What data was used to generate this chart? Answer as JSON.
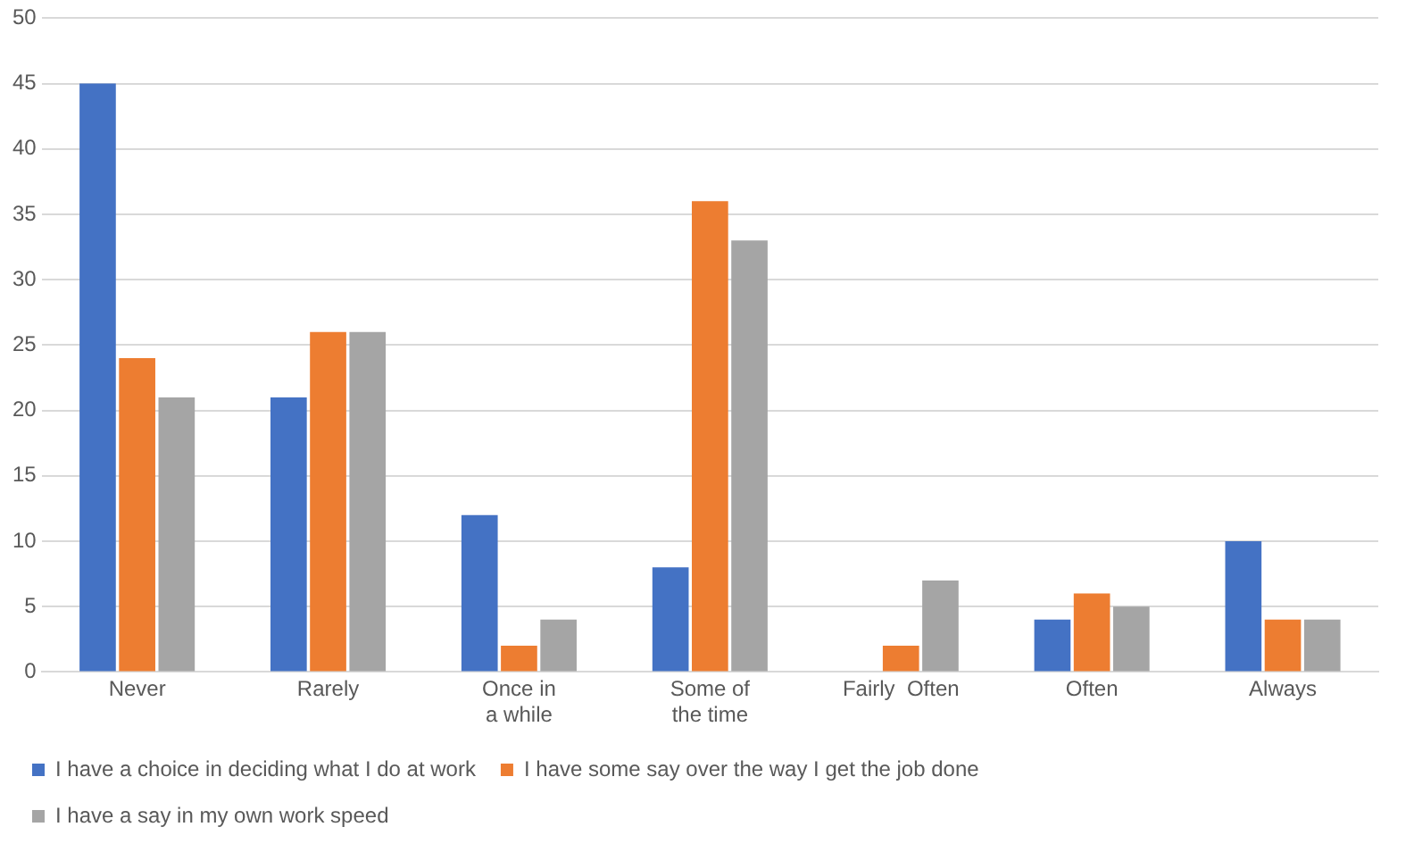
{
  "chart_data": {
    "type": "bar",
    "categories": [
      "Never",
      "Rarely",
      "Once in a while",
      "Some of the time",
      "Fairly  Often",
      "Often",
      "Always"
    ],
    "series": [
      {
        "name": "I have a choice in deciding what I do at work",
        "color": "#4472c4",
        "values": [
          45,
          21,
          12,
          8,
          0,
          4,
          10
        ]
      },
      {
        "name": "I have some say over the way I get the job done",
        "color": "#ed7d31",
        "values": [
          24,
          26,
          2,
          36,
          2,
          6,
          4
        ]
      },
      {
        "name": "I have a say in my own work speed",
        "color": "#a5a5a5",
        "values": [
          21,
          26,
          4,
          33,
          7,
          5,
          4
        ]
      }
    ],
    "ylim": [
      0,
      50
    ],
    "yticks": [
      0,
      5,
      10,
      15,
      20,
      25,
      30,
      35,
      40,
      45,
      50
    ],
    "grid": "y",
    "legend": "bottom"
  }
}
